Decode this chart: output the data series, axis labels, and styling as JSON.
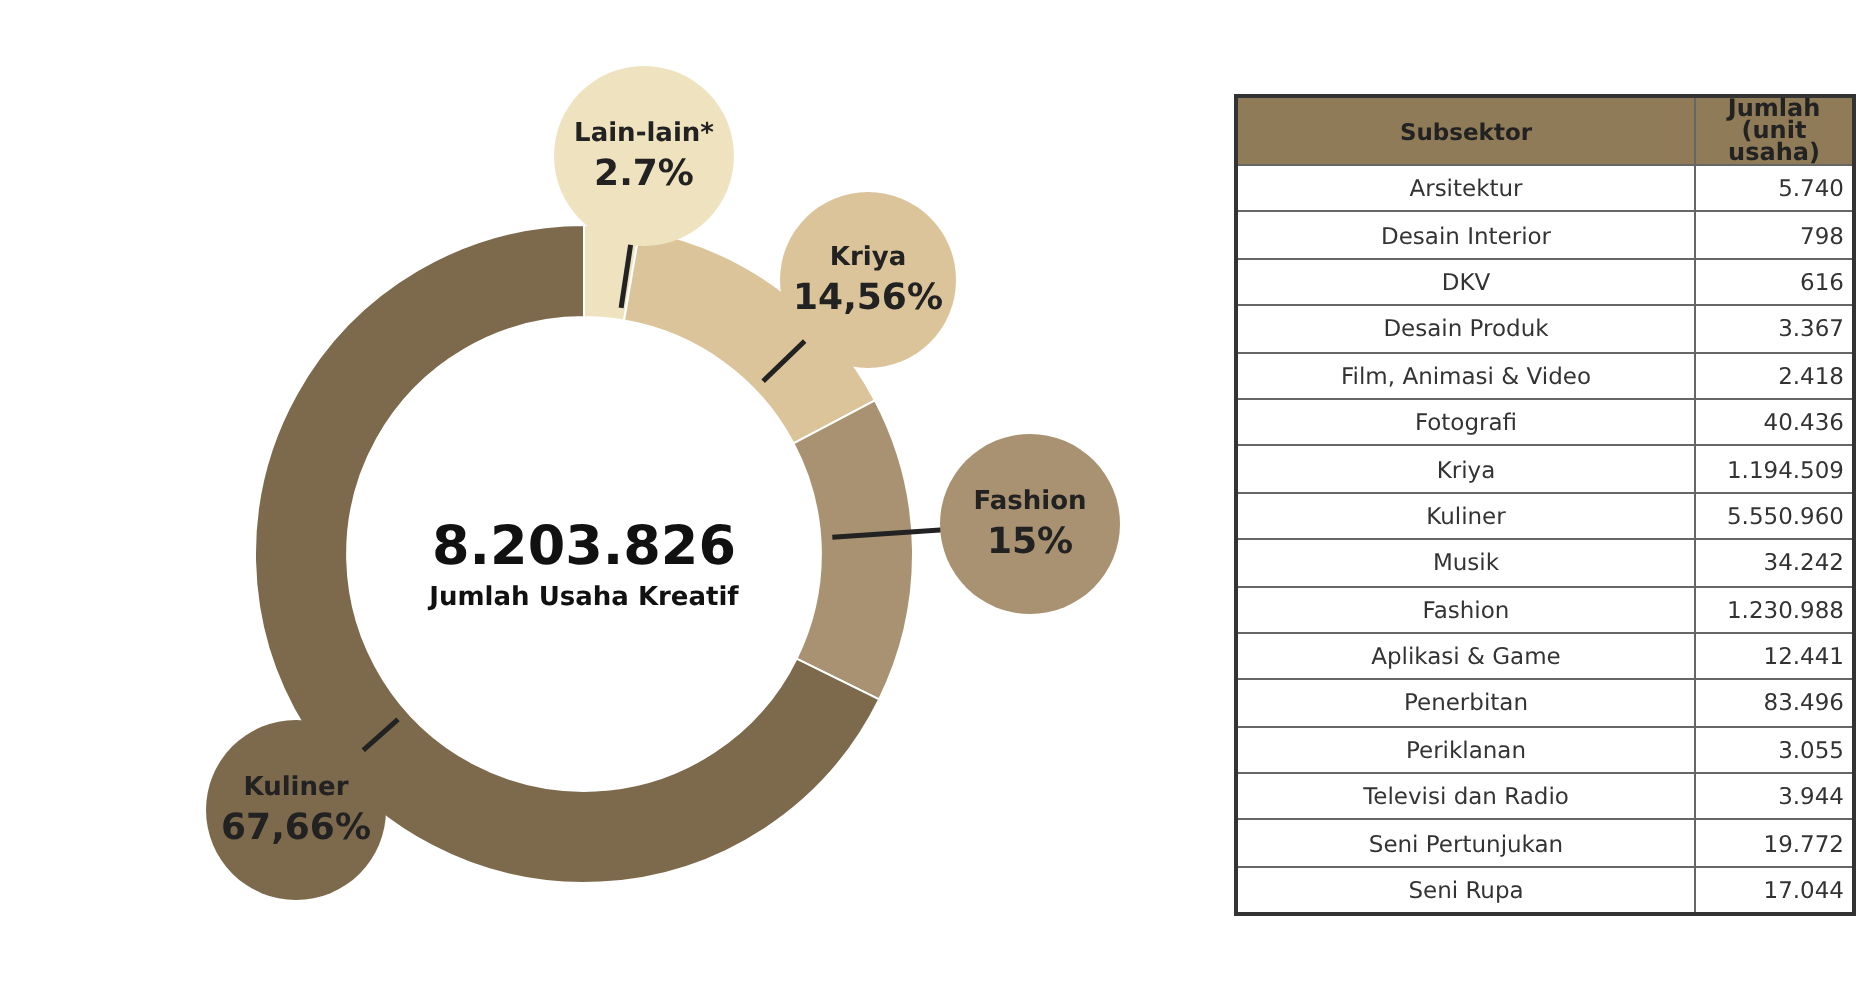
{
  "chart_data": [
    {
      "type": "donut",
      "categories": [
        "Lain-lain*",
        "Kriya",
        "Fashion",
        "Kuliner"
      ],
      "values": [
        2.7,
        14.56,
        15,
        67.66
      ],
      "value_labels": [
        "2.7%",
        "14,56%",
        "15%",
        "67,66%"
      ],
      "colors": [
        "#efe2bf",
        "#dcc49a",
        "#a99271",
        "#7d6a4c"
      ],
      "annotations": [
        "8.203.826",
        "Jumlah Usaha Kreatif"
      ],
      "legend": false
    },
    {
      "type": "other",
      "xlabel": "Subsektor",
      "ylabel": "Jumlah (unit usaha)",
      "value_labels": [
        "5.740",
        "798",
        "616",
        "3.367",
        "2.418",
        "40.436",
        "1.194.509",
        "5.550.960",
        "34.242",
        "1.230.988",
        "12.441",
        "83.496",
        "3.055",
        "3.944",
        "19.772",
        "17.044"
      ],
      "categories": [
        "Arsitektur",
        "Desain Interior",
        "DKV",
        "Desain  Produk",
        "Film, Animasi & Video",
        "Fotografi",
        "Kriya",
        "Kuliner",
        "Musik",
        "Fashion",
        "Aplikasi &  Game",
        "Penerbitan",
        "Periklanan",
        "Televisi dan Radio",
        "Seni Pertunjukan",
        "Seni Rupa"
      ],
      "values": [
        5740,
        798,
        616,
        3367,
        2418,
        40436,
        1194509,
        5550960,
        34242,
        1230988,
        12441,
        83496,
        3055,
        3944,
        19772,
        17044
      ]
    }
  ]
}
